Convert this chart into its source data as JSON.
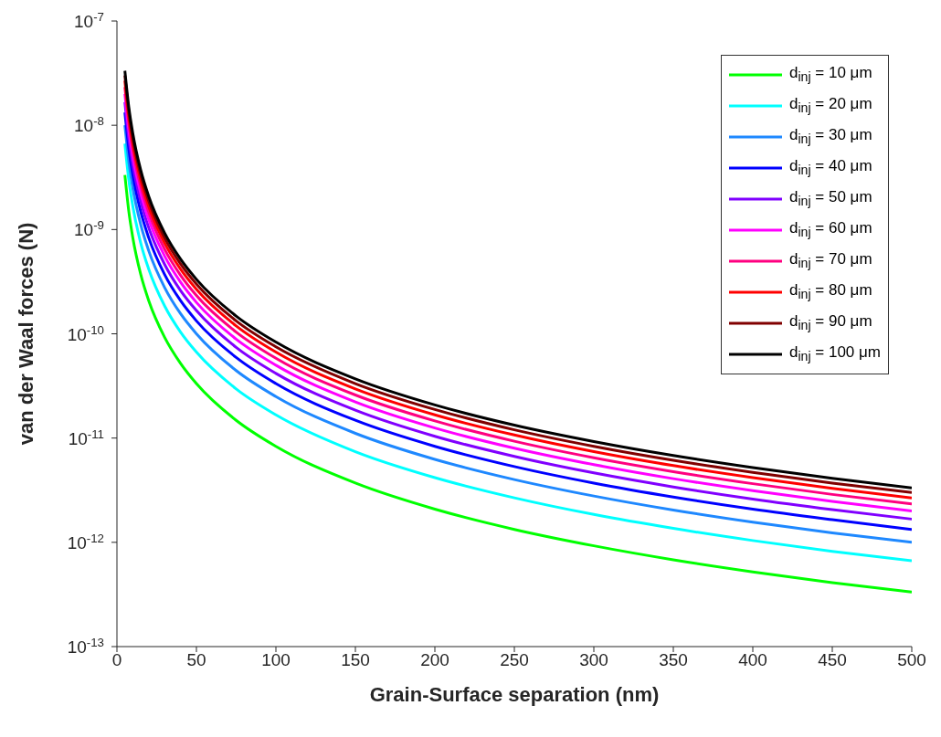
{
  "chart_data": {
    "type": "line",
    "xlabel": "Grain-Surface separation (nm)",
    "ylabel": "van der Waal forces (N)",
    "x": [
      5,
      7.5,
      10,
      15,
      20,
      30,
      40,
      50,
      75,
      100,
      150,
      200,
      250,
      300,
      350,
      400,
      450,
      500
    ],
    "xlim": [
      0,
      500
    ],
    "xticks": [
      0,
      50,
      100,
      150,
      200,
      250,
      300,
      350,
      400,
      450,
      500
    ],
    "log": "y",
    "ylim": [
      1e-13,
      1e-07
    ],
    "yticks": [
      {
        "value": 1e-13,
        "label": "10$^{-13}$"
      },
      {
        "value": 1e-12,
        "label": "10$^{-12}$"
      },
      {
        "value": 1e-11,
        "label": "10$^{-11}$"
      },
      {
        "value": 1e-10,
        "label": "10$^{-10}$"
      },
      {
        "value": 1e-09,
        "label": "10$^{-9}$"
      },
      {
        "value": 1e-08,
        "label": "10$^{-8}$"
      },
      {
        "value": 1e-07,
        "label": "10$^{-7}$"
      }
    ],
    "legend": "top right",
    "line_style": "solid",
    "series": [
      {
        "name": "d$_{inj}$ = 10 μm",
        "color": "#00ff00",
        "values": [
          3.33e-09,
          1.48e-09,
          8.33e-10,
          3.7e-10,
          2.08e-10,
          9.26e-11,
          5.21e-11,
          3.33e-11,
          1.48e-11,
          8.33e-12,
          3.7e-12,
          2.08e-12,
          1.33e-12,
          9.26e-13,
          6.8e-13,
          5.21e-13,
          4.11e-13,
          3.33e-13
        ]
      },
      {
        "name": "d$_{inj}$ = 20 μm",
        "color": "#00ffff",
        "values": [
          6.67e-09,
          2.96e-09,
          1.67e-09,
          7.4e-10,
          4.17e-10,
          1.85e-10,
          1.04e-10,
          6.67e-11,
          2.96e-11,
          1.67e-11,
          7.4e-12,
          4.17e-12,
          2.67e-12,
          1.85e-12,
          1.36e-12,
          1.04e-12,
          8.2e-13,
          6.67e-13
        ]
      },
      {
        "name": "d$_{inj}$ = 30 μm",
        "color": "#1e88ff",
        "values": [
          1e-08,
          4.44e-09,
          2.5e-09,
          1.11e-09,
          6.25e-10,
          2.78e-10,
          1.56e-10,
          1e-10,
          4.44e-11,
          2.5e-11,
          1.11e-11,
          6.25e-12,
          4e-12,
          2.78e-12,
          2.04e-12,
          1.56e-12,
          1.23e-12,
          1e-12
        ]
      },
      {
        "name": "d$_{inj}$ = 40 μm",
        "color": "#0000ff",
        "values": [
          1.33e-08,
          5.93e-09,
          3.33e-09,
          1.48e-09,
          8.33e-10,
          3.7e-10,
          2.08e-10,
          1.33e-10,
          5.93e-11,
          3.33e-11,
          1.48e-11,
          8.33e-12,
          5.33e-12,
          3.7e-12,
          2.72e-12,
          2.08e-12,
          1.65e-12,
          1.33e-12
        ]
      },
      {
        "name": "d$_{inj}$ = 50 μm",
        "color": "#8000ff",
        "values": [
          1.67e-08,
          7.41e-09,
          4.17e-09,
          1.85e-09,
          1.04e-09,
          4.63e-10,
          2.6e-10,
          1.67e-10,
          7.41e-11,
          4.17e-11,
          1.85e-11,
          1.04e-11,
          6.67e-12,
          4.63e-12,
          3.4e-12,
          2.6e-12,
          2.06e-12,
          1.67e-12
        ]
      },
      {
        "name": "d$_{inj}$ = 60 μm",
        "color": "#ff00ff",
        "values": [
          2e-08,
          8.89e-09,
          5e-09,
          2.22e-09,
          1.25e-09,
          5.56e-10,
          3.13e-10,
          2e-10,
          8.89e-11,
          5e-11,
          2.22e-11,
          1.25e-11,
          8e-12,
          5.56e-12,
          4.08e-12,
          3.13e-12,
          2.47e-12,
          2e-12
        ]
      },
      {
        "name": "d$_{inj}$ = 70 μm",
        "color": "#ff0080",
        "values": [
          2.33e-08,
          1.04e-08,
          5.83e-09,
          2.59e-09,
          1.46e-09,
          6.48e-10,
          3.65e-10,
          2.33e-10,
          1.04e-10,
          5.83e-11,
          2.59e-11,
          1.46e-11,
          9.33e-12,
          6.48e-12,
          4.76e-12,
          3.65e-12,
          2.88e-12,
          2.33e-12
        ]
      },
      {
        "name": "d$_{inj}$ = 80 μm",
        "color": "#ff0000",
        "values": [
          2.67e-08,
          1.19e-08,
          6.67e-09,
          2.96e-09,
          1.67e-09,
          7.41e-10,
          4.17e-10,
          2.67e-10,
          1.19e-10,
          6.67e-11,
          2.96e-11,
          1.67e-11,
          1.07e-11,
          7.41e-12,
          5.44e-12,
          4.17e-12,
          3.29e-12,
          2.67e-12
        ]
      },
      {
        "name": "d$_{inj}$ = 90 μm",
        "color": "#800000",
        "values": [
          3e-08,
          1.33e-08,
          7.5e-09,
          3.33e-09,
          1.88e-09,
          8.33e-10,
          4.69e-10,
          3e-10,
          1.33e-10,
          7.5e-11,
          3.33e-11,
          1.88e-11,
          1.2e-11,
          8.33e-12,
          6.12e-12,
          4.69e-12,
          3.7e-12,
          3e-12
        ]
      },
      {
        "name": "d$_{inj}$ = 100 μm",
        "color": "#000000",
        "values": [
          3.33e-08,
          1.48e-08,
          8.33e-09,
          3.7e-09,
          2.08e-09,
          9.26e-10,
          5.21e-10,
          3.33e-10,
          1.48e-10,
          8.33e-11,
          3.7e-11,
          2.08e-11,
          1.33e-11,
          9.26e-12,
          6.8e-12,
          5.21e-12,
          4.11e-12,
          3.33e-12
        ]
      }
    ]
  }
}
